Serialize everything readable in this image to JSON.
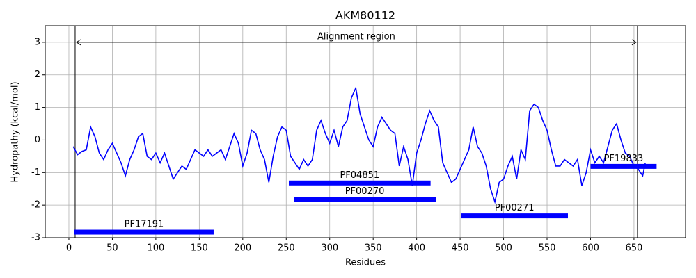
{
  "chart_data": {
    "type": "line",
    "title": "AKM80112",
    "x_label": "Residues",
    "y_label": "Hydropathy (kcal/mol)",
    "xlim": [
      -27.2,
      709.3
    ],
    "ylim": [
      -3,
      3.51
    ],
    "xticks": [
      0,
      50,
      100,
      150,
      200,
      250,
      300,
      350,
      400,
      450,
      500,
      550,
      600,
      650
    ],
    "yticks": [
      -3,
      -2,
      -1,
      0,
      1,
      2,
      3
    ],
    "grid": true,
    "hline": 0,
    "x": [
      5,
      10,
      15,
      20,
      25,
      30,
      35,
      40,
      45,
      50,
      55,
      60,
      65,
      70,
      75,
      80,
      85,
      90,
      95,
      100,
      105,
      110,
      115,
      120,
      125,
      130,
      135,
      140,
      145,
      150,
      155,
      160,
      165,
      170,
      175,
      180,
      185,
      190,
      195,
      200,
      205,
      210,
      215,
      220,
      225,
      230,
      235,
      240,
      245,
      250,
      255,
      260,
      265,
      270,
      275,
      280,
      285,
      290,
      295,
      300,
      305,
      310,
      315,
      320,
      325,
      330,
      335,
      340,
      345,
      350,
      355,
      360,
      365,
      370,
      375,
      380,
      385,
      390,
      395,
      400,
      405,
      410,
      415,
      420,
      425,
      430,
      435,
      440,
      445,
      450,
      455,
      460,
      465,
      470,
      475,
      480,
      485,
      490,
      495,
      500,
      505,
      510,
      515,
      520,
      525,
      530,
      535,
      540,
      545,
      550,
      555,
      560,
      565,
      570,
      575,
      580,
      585,
      590,
      595,
      600,
      605,
      610,
      615,
      620,
      625,
      630,
      635,
      640,
      645,
      650,
      655,
      660,
      663
    ],
    "series": [
      {
        "name": "Hydropathy",
        "color": "#0000ff",
        "values": [
          -0.2,
          -0.45,
          -0.35,
          -0.3,
          0.4,
          0.1,
          -0.4,
          -0.6,
          -0.3,
          -0.1,
          -0.4,
          -0.7,
          -1.1,
          -0.6,
          -0.3,
          0.1,
          0.2,
          -0.5,
          -0.6,
          -0.4,
          -0.7,
          -0.4,
          -0.8,
          -1.2,
          -1.0,
          -0.8,
          -0.9,
          -0.6,
          -0.3,
          -0.4,
          -0.5,
          -0.3,
          -0.5,
          -0.4,
          -0.3,
          -0.6,
          -0.2,
          0.2,
          -0.1,
          -0.8,
          -0.4,
          0.3,
          0.2,
          -0.3,
          -0.6,
          -1.3,
          -0.5,
          0.1,
          0.4,
          0.3,
          -0.5,
          -0.7,
          -0.9,
          -0.6,
          -0.8,
          -0.6,
          0.3,
          0.6,
          0.2,
          -0.1,
          0.3,
          -0.2,
          0.4,
          0.6,
          1.3,
          1.6,
          0.8,
          0.4,
          0.0,
          -0.2,
          0.4,
          0.7,
          0.5,
          0.3,
          0.2,
          -0.8,
          -0.2,
          -0.6,
          -1.4,
          -0.4,
          0.0,
          0.5,
          0.9,
          0.6,
          0.4,
          -0.7,
          -1.0,
          -1.3,
          -1.2,
          -0.9,
          -0.6,
          -0.3,
          0.4,
          -0.2,
          -0.4,
          -0.8,
          -1.5,
          -1.9,
          -1.3,
          -1.2,
          -0.8,
          -0.5,
          -1.2,
          -0.3,
          -0.6,
          0.9,
          1.1,
          1.0,
          0.6,
          0.3,
          -0.3,
          -0.8,
          -0.8,
          -0.6,
          -0.7,
          -0.8,
          -0.6,
          -1.4,
          -1.0,
          -0.3,
          -0.7,
          -0.5,
          -0.7,
          -0.2,
          0.3,
          0.5,
          0.0,
          -0.4,
          -0.5,
          -0.8,
          -0.9,
          -1.1,
          -0.7
        ]
      }
    ],
    "alignment": {
      "label": "Alignment region",
      "start": 7.2,
      "end": 654,
      "y": 3
    },
    "domain_color": "#0000ff",
    "domains": [
      {
        "name": "PF17191",
        "start": 6.4,
        "end": 166.5,
        "y": -2.83
      },
      {
        "name": "PF04851",
        "start": 253,
        "end": 416,
        "y": -1.32
      },
      {
        "name": "PF00270",
        "start": 258.6,
        "end": 422,
        "y": -1.82
      },
      {
        "name": "PF00271",
        "start": 451,
        "end": 574,
        "y": -2.33
      },
      {
        "name": "PF19833",
        "start": 600,
        "end": 676,
        "y": -0.81
      }
    ]
  }
}
